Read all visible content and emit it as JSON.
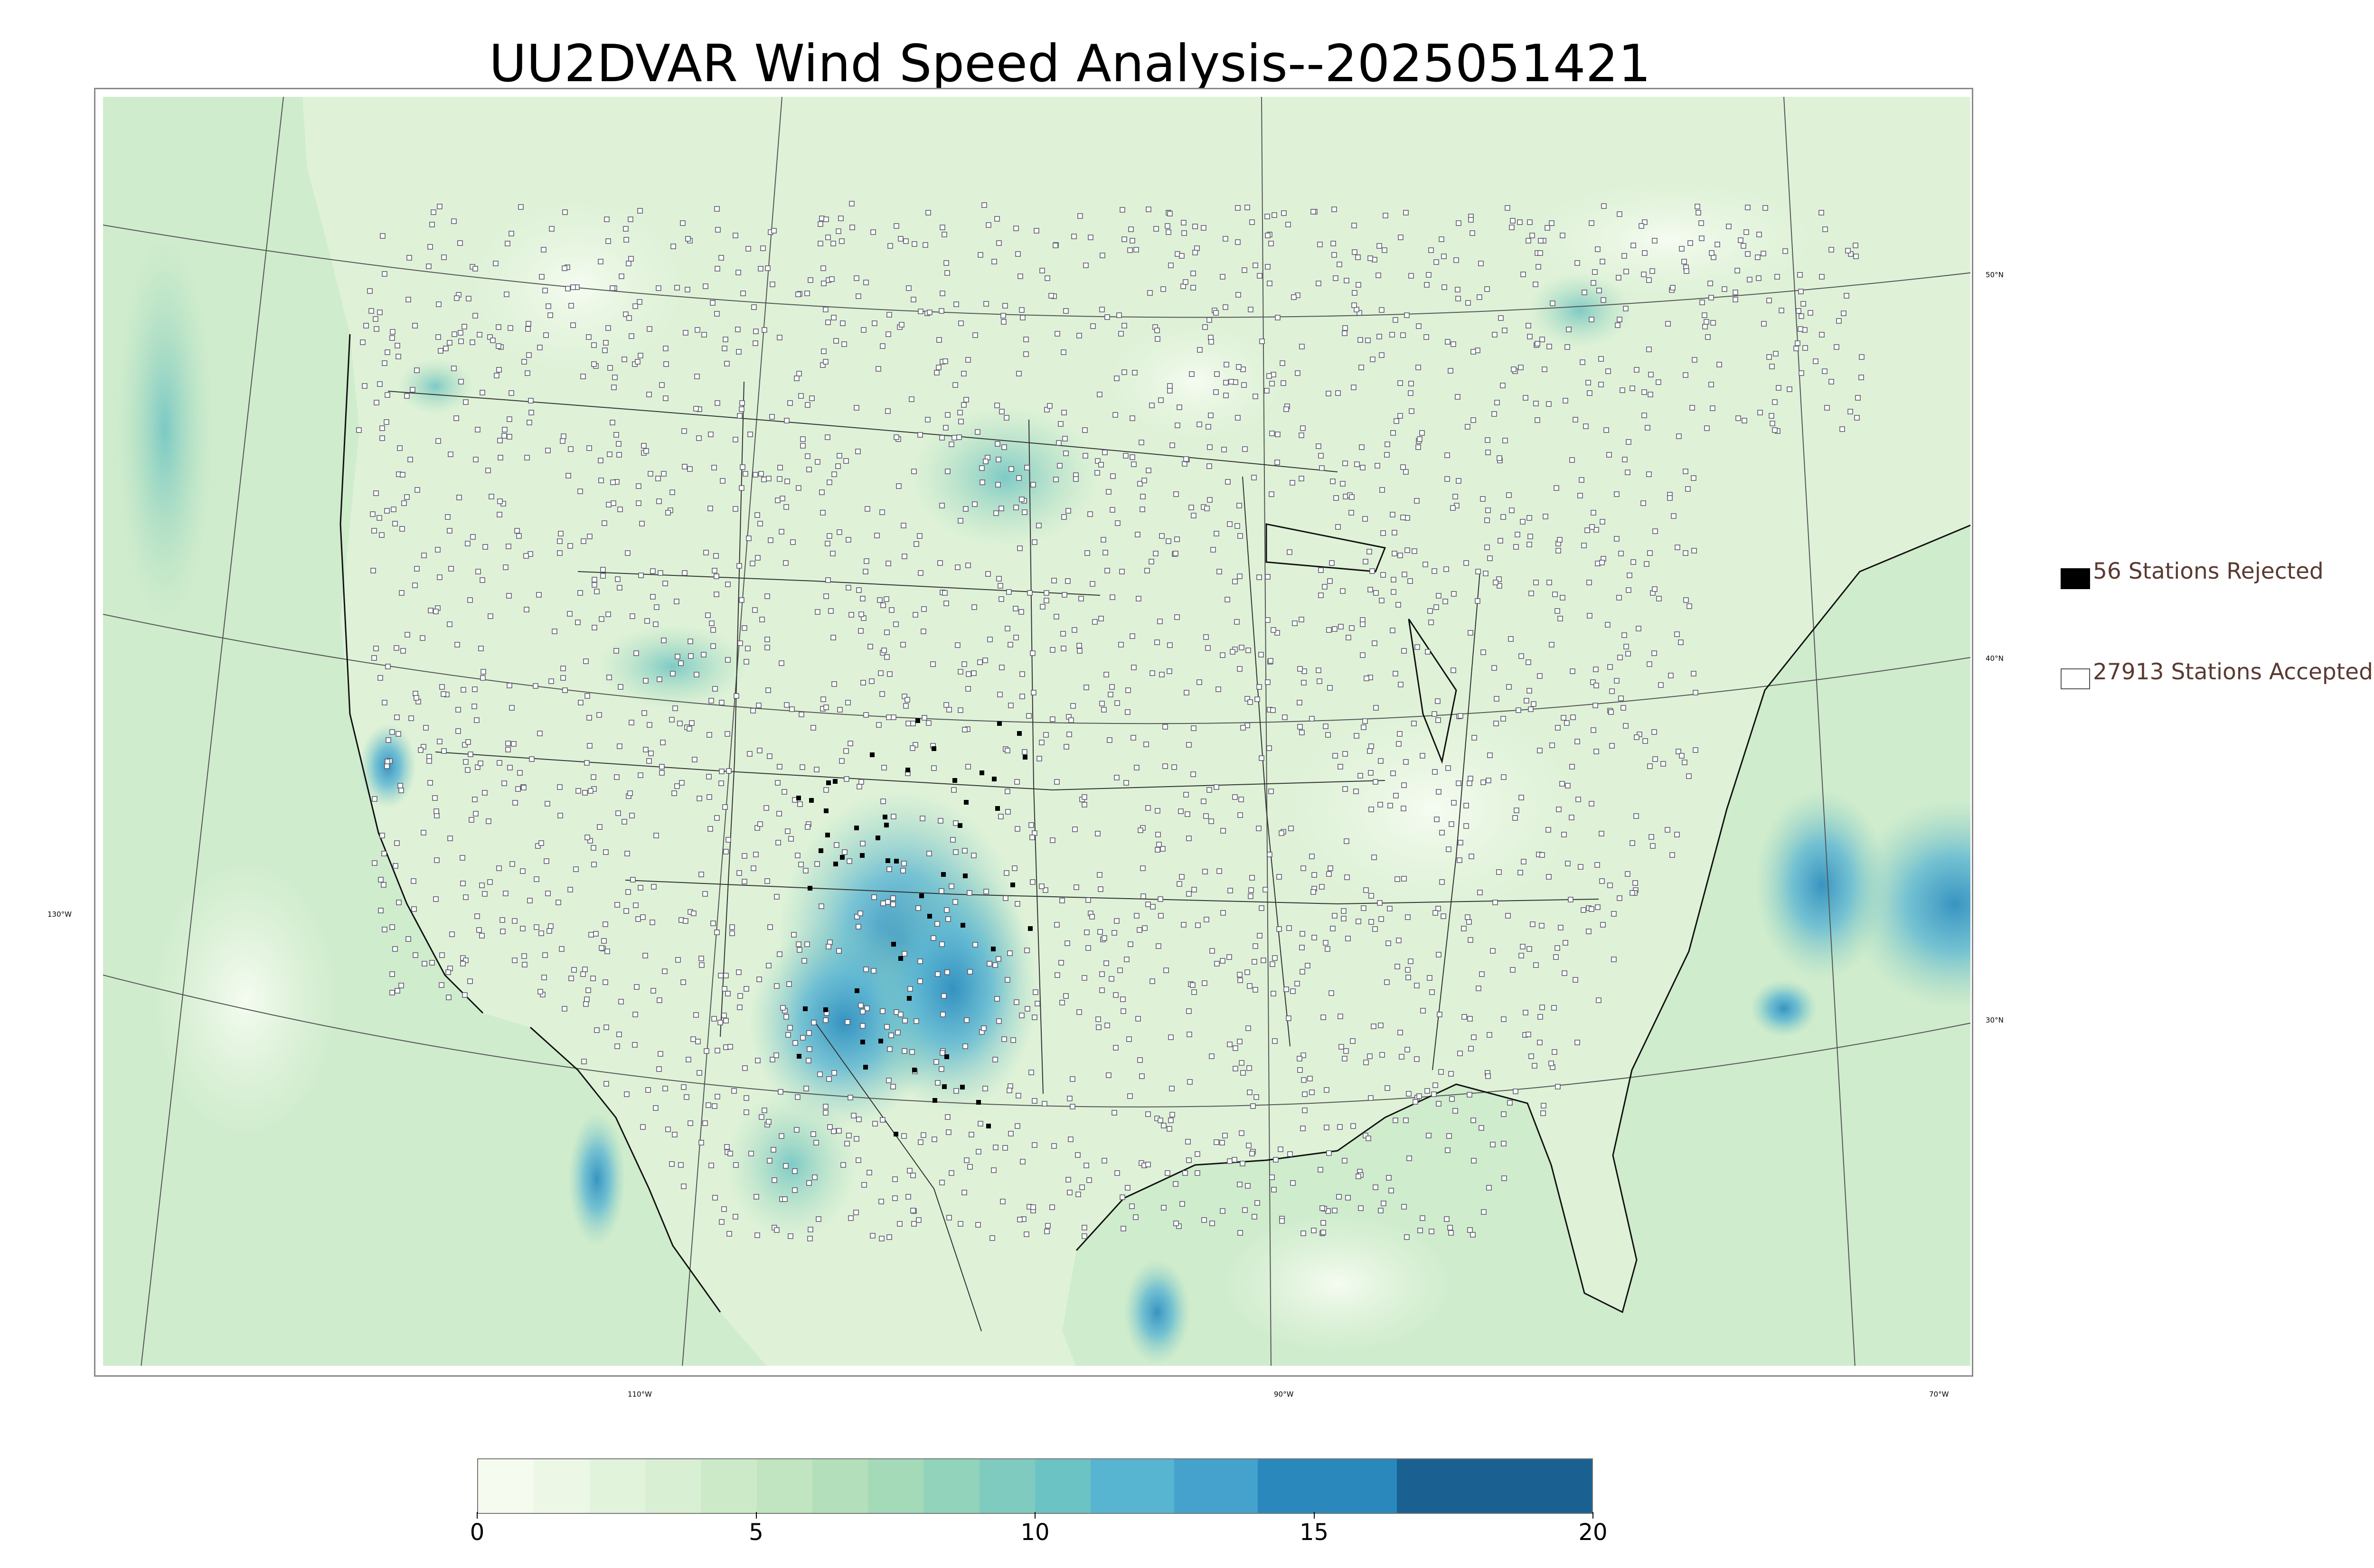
{
  "title": "UU2DVAR Wind Speed Analysis--2025051421",
  "legend": {
    "rejected": {
      "label": "56 Stations Rejected",
      "count": 56,
      "marker_color": "#000000"
    },
    "accepted": {
      "label": "27913 Stations Accepted",
      "count": 27913,
      "marker_color": "#ffffff"
    }
  },
  "graticule": {
    "lat_labels": [
      "50°N",
      "40°N",
      "30°N"
    ],
    "lon_labels": [
      "130°W",
      "110°W",
      "90°W",
      "70°W"
    ]
  },
  "colorbar": {
    "min": 0,
    "max": 20,
    "ticks": [
      0,
      5,
      10,
      15,
      20
    ],
    "levels": [
      0,
      1,
      2,
      3,
      4,
      5,
      6,
      7,
      8,
      9,
      10,
      11,
      12.5,
      14,
      16.5,
      20
    ],
    "colors": [
      "#f5fbef",
      "#ecf7e6",
      "#e2f3dc",
      "#d8efd3",
      "#cdeac8",
      "#c0e5c0",
      "#b3e0bb",
      "#a4dab8",
      "#92d3bb",
      "#7fcbc0",
      "#6cc3c4",
      "#57b5d2",
      "#44a2cc",
      "#2a88bc",
      "#1a6192"
    ]
  },
  "colors": {
    "ocean": "#cfeccd",
    "land": "#dff2d8",
    "boundaries": "#333333",
    "station_edge": "#555566"
  }
}
